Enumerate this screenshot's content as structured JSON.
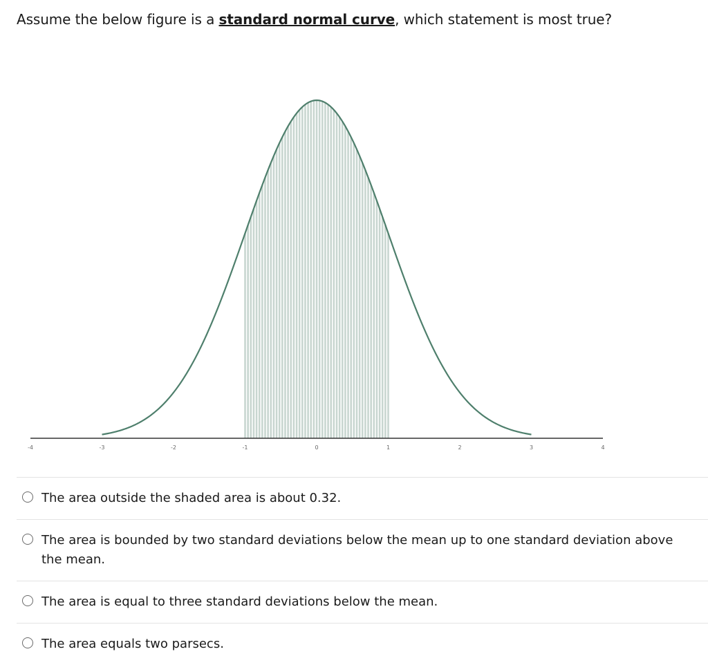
{
  "question": {
    "prefix": "Assume the below figure is a ",
    "emphasis": "standard normal curve",
    "suffix": ", which statement is most true?"
  },
  "figure": {
    "colors": {
      "curve": "#4e7f6c",
      "shade": "#c8d6d0",
      "axis": "#333333"
    },
    "tick_labels": [
      "-4",
      "-3",
      "-2",
      "-1",
      "0",
      "1",
      "2",
      "3",
      "4"
    ],
    "shaded_range": [
      -1,
      1
    ]
  },
  "options": [
    {
      "label": "The area outside the shaded area is about 0.32."
    },
    {
      "label": "The area is bounded by two standard deviations below the mean up to one standard deviation above the mean."
    },
    {
      "label": "The area is equal to three standard deviations below the mean."
    },
    {
      "label": "The area equals two parsecs."
    }
  ]
}
